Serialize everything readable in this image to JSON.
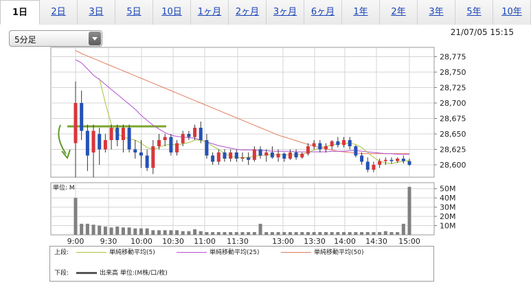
{
  "tabs": [
    "1日",
    "2日",
    "3日",
    "5日",
    "10日",
    "1ヶ月",
    "2ヶ月",
    "3ヶ月",
    "6ヶ月",
    "1年",
    "2年",
    "3年",
    "5年",
    "10年"
  ],
  "active_tab": 0,
  "interval_select": {
    "value": "5分足"
  },
  "datetime": "21/07/05 15:15",
  "legend": {
    "upper_label": "上段:",
    "lower_label": "下段:",
    "ma5": "単純移動平均(5)",
    "ma25": "単純移動平均(25)",
    "ma50": "単純移動平均(50)",
    "volume": "出来高 単位:(M株/口/枚)"
  },
  "colors": {
    "up": "#d9363c",
    "down": "#2452b5",
    "ma5": "#a8c23a",
    "ma25": "#b44fd0",
    "ma50": "#e37a5a",
    "volume": "#808080",
    "annot_line": "#7aa62b",
    "annot_arrow": "#5f9b2a"
  },
  "chart_data": [
    {
      "type": "candlestick",
      "x_tick_labels": [
        "9:00",
        "9:30",
        "10:00",
        "10:30",
        "11:00",
        "11:30",
        "13:00",
        "13:30",
        "14:00",
        "14:30",
        "15:00"
      ],
      "y_tick_labels": [
        "28,775",
        "28,750",
        "28,725",
        "28,700",
        "28,675",
        "28,650",
        "28,625",
        "28,600"
      ],
      "ylim": [
        28580,
        28790
      ],
      "ohlc": [
        [
          28635,
          28735,
          28580,
          28700
        ],
        [
          28700,
          28720,
          28640,
          28655
        ],
        [
          28655,
          28665,
          28590,
          28615
        ],
        [
          28620,
          28665,
          28580,
          28655
        ],
        [
          28650,
          28660,
          28600,
          28625
        ],
        [
          28625,
          28650,
          28620,
          28640
        ],
        [
          28640,
          28665,
          28625,
          28660
        ],
        [
          28660,
          28665,
          28630,
          28640
        ],
        [
          28640,
          28665,
          28620,
          28660
        ],
        [
          28660,
          28665,
          28620,
          28625
        ],
        [
          28625,
          28640,
          28610,
          28620
        ],
        [
          28620,
          28640,
          28595,
          28615
        ],
        [
          28615,
          28625,
          28590,
          28595
        ],
        [
          28595,
          28640,
          28585,
          28630
        ],
        [
          28630,
          28650,
          28625,
          28640
        ],
        [
          28640,
          28650,
          28630,
          28645
        ],
        [
          28645,
          28650,
          28615,
          28620
        ],
        [
          28620,
          28640,
          28615,
          28635
        ],
        [
          28635,
          28655,
          28630,
          28650
        ],
        [
          28650,
          28655,
          28640,
          28645
        ],
        [
          28645,
          28665,
          28640,
          28660
        ],
        [
          28660,
          28670,
          28635,
          28640
        ],
        [
          28640,
          28650,
          28610,
          28615
        ],
        [
          28615,
          28620,
          28600,
          28605
        ],
        [
          28605,
          28625,
          28600,
          28620
        ],
        [
          28620,
          28625,
          28605,
          28610
        ],
        [
          28610,
          28625,
          28605,
          28620
        ],
        [
          28620,
          28625,
          28605,
          28610
        ],
        [
          28610,
          28620,
          28605,
          28612
        ],
        [
          28612,
          28620,
          28600,
          28608
        ],
        [
          28608,
          28630,
          28605,
          28625
        ],
        [
          28625,
          28630,
          28610,
          28615
        ],
        [
          28615,
          28625,
          28605,
          28620
        ],
        [
          28620,
          28630,
          28610,
          28612
        ],
        [
          28612,
          28625,
          28605,
          28618
        ],
        [
          28618,
          28620,
          28605,
          28610
        ],
        [
          28610,
          28625,
          28608,
          28620
        ],
        [
          28620,
          28625,
          28608,
          28612
        ],
        [
          28612,
          28620,
          28610,
          28618
        ],
        [
          28618,
          28635,
          28615,
          28630
        ],
        [
          28630,
          28640,
          28625,
          28635
        ],
        [
          28635,
          28640,
          28620,
          28625
        ],
        [
          28625,
          28635,
          28620,
          28630
        ],
        [
          28630,
          28640,
          28625,
          28638
        ],
        [
          28638,
          28645,
          28628,
          28632
        ],
        [
          28632,
          28645,
          28628,
          28640
        ],
        [
          28640,
          28645,
          28625,
          28630
        ],
        [
          28630,
          28632,
          28612,
          28615
        ],
        [
          28615,
          28620,
          28600,
          28605
        ],
        [
          28605,
          28612,
          28588,
          28592
        ],
        [
          28592,
          28605,
          28588,
          28600
        ],
        [
          28600,
          28610,
          28595,
          28606
        ],
        [
          28606,
          28612,
          28600,
          28608
        ],
        [
          28608,
          28612,
          28602,
          28606
        ],
        [
          28606,
          28612,
          28603,
          28610
        ],
        [
          28610,
          28615,
          28602,
          28606
        ],
        [
          28606,
          28610,
          28598,
          28600
        ]
      ],
      "ma5": [
        null,
        null,
        null,
        null,
        28740,
        28700,
        28665,
        28650,
        28645,
        28642,
        28640,
        28635,
        28628,
        28625,
        28628,
        28632,
        28633,
        28632,
        28634,
        28636,
        28640,
        28640,
        28637,
        28630,
        28625,
        28618,
        28614,
        28612,
        28612,
        28612,
        28614,
        28615,
        28616,
        28616,
        28617,
        28616,
        28616,
        28616,
        28617,
        28620,
        28624,
        28628,
        28630,
        28632,
        28634,
        28635,
        28635,
        28633,
        28628,
        28620,
        28612,
        28606,
        28603,
        28602,
        28604,
        28606,
        28607
      ],
      "ma25": [
        28770,
        28765,
        28755,
        28745,
        28738,
        28730,
        28722,
        28714,
        28706,
        28698,
        28690,
        28680,
        28672,
        28664,
        28658,
        28652,
        28648,
        28646,
        28645,
        28644,
        28643,
        28640,
        28637,
        28634,
        28631,
        28629,
        28627,
        28625,
        28624,
        28624,
        28624,
        28623,
        28623,
        28622,
        28622,
        28622,
        28622,
        28621,
        28621,
        28621,
        28621,
        28621,
        28621,
        28622,
        28622,
        28622,
        28623,
        28623,
        28622,
        28621,
        28620,
        28619,
        28618,
        28618,
        28617,
        28617,
        28617
      ],
      "ma50": [
        28785,
        28780,
        28776,
        28772,
        28768,
        28764,
        28760,
        28756,
        28752,
        28748,
        28744,
        28740,
        28736,
        28732,
        28728,
        28724,
        28720,
        28716,
        28712,
        28708,
        28704,
        28700,
        28696,
        28692,
        28688,
        28684,
        28680,
        28676,
        28672,
        28668,
        28664,
        28660,
        28656,
        28652,
        28648,
        28645,
        28642,
        28639,
        28636,
        28633,
        28630,
        28628,
        28626,
        28624,
        28622,
        28621,
        28620,
        28619,
        28618,
        28618,
        28618,
        28618,
        28618,
        28618,
        28618,
        28618,
        28618
      ]
    },
    {
      "type": "bar",
      "title": "単位: M",
      "y_tick_labels": [
        "50M",
        "40M",
        "30M",
        "20M",
        "10M"
      ],
      "ylim": [
        0,
        55
      ],
      "values": [
        40,
        12,
        12,
        11,
        10,
        9,
        8,
        9,
        8,
        8,
        7,
        7,
        7,
        5,
        5,
        5,
        5,
        5,
        4,
        4,
        6,
        4,
        3,
        3,
        3,
        3,
        3,
        3,
        3,
        3,
        3,
        12,
        3,
        3,
        3,
        3,
        3,
        3,
        3,
        3,
        3,
        3,
        3,
        3,
        3,
        3,
        3,
        3,
        3,
        3,
        3,
        3,
        4,
        3,
        3,
        12,
        52
      ]
    }
  ]
}
